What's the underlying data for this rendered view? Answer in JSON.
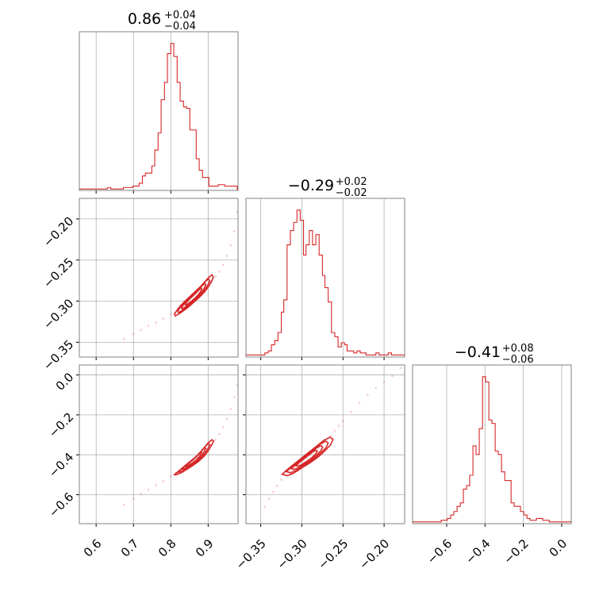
{
  "figure": {
    "kind": "corner plot",
    "colors": {
      "series": "#d62728",
      "frame": "#808080",
      "grid": "#b0b0b0",
      "text": "#000000"
    }
  },
  "chart_data": [
    {
      "id": "hist-p0",
      "type": "histogram",
      "title": "0.86",
      "title_plus": "+0.04",
      "title_minus": "−0.04",
      "xlim": [
        0.555,
        0.98
      ],
      "grid": true,
      "bins": [
        0.555,
        0.563,
        0.571,
        0.58,
        0.588,
        0.596,
        0.605,
        0.613,
        0.622,
        0.63,
        0.639,
        0.647,
        0.656,
        0.664,
        0.673,
        0.681,
        0.69,
        0.698,
        0.707,
        0.715,
        0.724,
        0.732,
        0.74,
        0.749,
        0.757,
        0.766,
        0.774,
        0.783,
        0.791,
        0.8,
        0.808,
        0.817,
        0.825,
        0.834,
        0.842,
        0.851,
        0.859,
        0.868,
        0.876,
        0.885,
        0.893,
        0.902,
        0.91,
        0.919,
        0.927,
        0.936,
        0.944,
        0.953,
        0.961,
        0.97,
        0.978
      ],
      "counts": [
        1,
        1,
        1,
        1,
        1,
        1,
        1,
        1,
        1,
        2,
        1,
        1,
        1,
        1,
        2,
        2,
        2,
        3,
        3,
        5,
        10,
        12,
        12,
        17,
        28,
        40,
        63,
        75,
        95,
        102,
        93,
        75,
        62,
        58,
        57,
        42,
        42,
        22,
        14,
        9,
        9,
        3,
        3,
        3,
        4,
        4,
        3,
        3,
        3,
        3
      ]
    },
    {
      "id": "hist-p1",
      "type": "histogram",
      "title": "−0.29",
      "title_plus": "+0.02",
      "title_minus": "−0.02",
      "xlim": [
        -0.368,
        -0.175
      ],
      "grid": true,
      "bins": [
        -0.368,
        -0.364,
        -0.36,
        -0.356,
        -0.352,
        -0.348,
        -0.345,
        -0.341,
        -0.337,
        -0.333,
        -0.329,
        -0.325,
        -0.322,
        -0.318,
        -0.314,
        -0.31,
        -0.306,
        -0.302,
        -0.298,
        -0.295,
        -0.291,
        -0.287,
        -0.283,
        -0.279,
        -0.275,
        -0.272,
        -0.268,
        -0.264,
        -0.26,
        -0.256,
        -0.252,
        -0.248,
        -0.245,
        -0.241,
        -0.237,
        -0.233,
        -0.229,
        -0.225,
        -0.222,
        -0.218,
        -0.214,
        -0.21,
        -0.206,
        -0.202,
        -0.198,
        -0.195,
        -0.191,
        -0.187,
        -0.183,
        -0.179,
        -0.175
      ],
      "counts": [
        1,
        1,
        1,
        1,
        1,
        1,
        2,
        3,
        6,
        8,
        12,
        22,
        28,
        55,
        62,
        66,
        72,
        67,
        50,
        55,
        62,
        55,
        60,
        50,
        40,
        34,
        27,
        12,
        10,
        5,
        7,
        6,
        3,
        3,
        2,
        3,
        2,
        2,
        1,
        1,
        1,
        2,
        1,
        1,
        1,
        2,
        1,
        1,
        1,
        1
      ]
    },
    {
      "id": "hist-p2",
      "type": "histogram",
      "title": "−0.41",
      "title_plus": "+0.08",
      "title_minus": "−0.06",
      "xlim": [
        -0.778,
        0.05
      ],
      "grid": true,
      "bins": [
        -0.778,
        -0.761,
        -0.745,
        -0.728,
        -0.712,
        -0.695,
        -0.679,
        -0.662,
        -0.645,
        -0.629,
        -0.612,
        -0.596,
        -0.579,
        -0.563,
        -0.546,
        -0.529,
        -0.513,
        -0.496,
        -0.48,
        -0.463,
        -0.447,
        -0.43,
        -0.413,
        -0.397,
        -0.38,
        -0.364,
        -0.347,
        -0.331,
        -0.314,
        -0.297,
        -0.281,
        -0.264,
        -0.248,
        -0.231,
        -0.215,
        -0.198,
        -0.181,
        -0.165,
        -0.148,
        -0.132,
        -0.115,
        -0.099,
        -0.082,
        -0.065,
        -0.049,
        -0.032,
        -0.016,
        0.001,
        0.017,
        0.034,
        0.05
      ],
      "counts": [
        1,
        1,
        1,
        1,
        1,
        1,
        1,
        1,
        1,
        2,
        2,
        3,
        5,
        7,
        10,
        12,
        20,
        22,
        28,
        45,
        40,
        55,
        85,
        82,
        60,
        58,
        42,
        40,
        30,
        25,
        25,
        12,
        10,
        10,
        7,
        5,
        3,
        2,
        2,
        3,
        3,
        2,
        2,
        1,
        1,
        1,
        1,
        1,
        1,
        1
      ]
    },
    {
      "id": "scatter-p1-vs-p0",
      "type": "scatter",
      "xlim": [
        0.555,
        0.98
      ],
      "ylim": [
        -0.368,
        -0.175
      ],
      "grid": true,
      "x": [
        0.675,
        0.7,
        0.72,
        0.74,
        0.76,
        0.78,
        0.8,
        0.81,
        0.82,
        0.83,
        0.84,
        0.85,
        0.86,
        0.87,
        0.88,
        0.89,
        0.9,
        0.91,
        0.92,
        0.93,
        0.94,
        0.95,
        0.96,
        0.97,
        0.978
      ],
      "y": [
        -0.346,
        -0.34,
        -0.335,
        -0.33,
        -0.326,
        -0.321,
        -0.316,
        -0.314,
        -0.311,
        -0.308,
        -0.305,
        -0.302,
        -0.298,
        -0.294,
        -0.29,
        -0.286,
        -0.281,
        -0.276,
        -0.27,
        -0.264,
        -0.256,
        -0.245,
        -0.232,
        -0.215,
        -0.192
      ],
      "contour": {
        "x": [
          0.812,
          0.82,
          0.83,
          0.845,
          0.86,
          0.875,
          0.89,
          0.9,
          0.908,
          0.914,
          0.91,
          0.902,
          0.892,
          0.88,
          0.866,
          0.852,
          0.838,
          0.825,
          0.815,
          0.81,
          0.812
        ],
        "y": [
          -0.318,
          -0.316,
          -0.313,
          -0.308,
          -0.302,
          -0.296,
          -0.289,
          -0.283,
          -0.277,
          -0.271,
          -0.268,
          -0.271,
          -0.276,
          -0.282,
          -0.288,
          -0.294,
          -0.3,
          -0.306,
          -0.312,
          -0.316,
          -0.318
        ]
      }
    },
    {
      "id": "scatter-p2-vs-p0",
      "type": "scatter",
      "xlim": [
        0.555,
        0.98
      ],
      "ylim": [
        -0.745,
        0.05
      ],
      "grid": true,
      "x": [
        0.675,
        0.7,
        0.72,
        0.74,
        0.76,
        0.78,
        0.8,
        0.81,
        0.82,
        0.83,
        0.84,
        0.85,
        0.86,
        0.87,
        0.88,
        0.89,
        0.9,
        0.91,
        0.92,
        0.93,
        0.94,
        0.95,
        0.96,
        0.97,
        0.978
      ],
      "y": [
        -0.65,
        -0.62,
        -0.595,
        -0.575,
        -0.553,
        -0.532,
        -0.508,
        -0.497,
        -0.485,
        -0.472,
        -0.458,
        -0.444,
        -0.43,
        -0.415,
        -0.4,
        -0.385,
        -0.368,
        -0.348,
        -0.325,
        -0.296,
        -0.262,
        -0.22,
        -0.17,
        -0.11,
        -0.05
      ],
      "contour": {
        "x": [
          0.81,
          0.818,
          0.83,
          0.845,
          0.86,
          0.875,
          0.89,
          0.9,
          0.908,
          0.915,
          0.91,
          0.9,
          0.89,
          0.878,
          0.864,
          0.85,
          0.836,
          0.823,
          0.814,
          0.808,
          0.81
        ],
        "y": [
          -0.5,
          -0.498,
          -0.488,
          -0.47,
          -0.452,
          -0.432,
          -0.405,
          -0.38,
          -0.356,
          -0.332,
          -0.325,
          -0.34,
          -0.365,
          -0.39,
          -0.415,
          -0.436,
          -0.458,
          -0.478,
          -0.494,
          -0.5,
          -0.5
        ]
      }
    },
    {
      "id": "scatter-p2-vs-p1",
      "type": "scatter",
      "xlim": [
        -0.368,
        -0.175
      ],
      "ylim": [
        -0.745,
        0.05
      ],
      "grid": true,
      "x": [
        -0.345,
        -0.34,
        -0.335,
        -0.33,
        -0.325,
        -0.32,
        -0.315,
        -0.31,
        -0.305,
        -0.3,
        -0.295,
        -0.29,
        -0.285,
        -0.28,
        -0.275,
        -0.27,
        -0.265,
        -0.26,
        -0.255,
        -0.25,
        -0.24,
        -0.23,
        -0.22,
        -0.21,
        -0.2,
        -0.19,
        -0.18
      ],
      "y": [
        -0.66,
        -0.62,
        -0.585,
        -0.555,
        -0.525,
        -0.5,
        -0.485,
        -0.465,
        -0.448,
        -0.432,
        -0.415,
        -0.4,
        -0.383,
        -0.365,
        -0.348,
        -0.33,
        -0.305,
        -0.28,
        -0.255,
        -0.23,
        -0.185,
        -0.14,
        -0.1,
        -0.065,
        -0.035,
        -0.005,
        0.035
      ],
      "contour": {
        "x": [
          -0.322,
          -0.318,
          -0.31,
          -0.3,
          -0.29,
          -0.28,
          -0.272,
          -0.265,
          -0.262,
          -0.266,
          -0.274,
          -0.283,
          -0.293,
          -0.303,
          -0.312,
          -0.32,
          -0.324,
          -0.322
        ],
        "y": [
          -0.5,
          -0.505,
          -0.492,
          -0.465,
          -0.44,
          -0.41,
          -0.38,
          -0.35,
          -0.322,
          -0.312,
          -0.33,
          -0.36,
          -0.392,
          -0.425,
          -0.455,
          -0.482,
          -0.498,
          -0.5
        ]
      }
    }
  ],
  "axes": {
    "x_ticks": {
      "p0": {
        "values": [
          0.6,
          0.7,
          0.8,
          0.9
        ],
        "labels": [
          "0.6",
          "0.7",
          "0.8",
          "0.9"
        ]
      },
      "p1": {
        "values": [
          -0.35,
          -0.3,
          -0.25,
          -0.2
        ],
        "labels": [
          "−0.35",
          "−0.30",
          "−0.25",
          "−0.20"
        ]
      },
      "p2": {
        "values": [
          -0.6,
          -0.4,
          -0.2,
          0.0
        ],
        "labels": [
          "−0.6",
          "−0.4",
          "−0.2",
          "0.0"
        ]
      }
    },
    "y_ticks": {
      "p1": {
        "values": [
          -0.2,
          -0.25,
          -0.3,
          -0.35
        ],
        "labels": [
          "−0.20",
          "−0.25",
          "−0.30",
          "−0.35"
        ]
      },
      "p2": {
        "values": [
          0.0,
          -0.2,
          -0.4,
          -0.6
        ],
        "labels": [
          "0.0",
          "−0.2",
          "−0.4",
          "−0.6"
        ]
      }
    }
  }
}
